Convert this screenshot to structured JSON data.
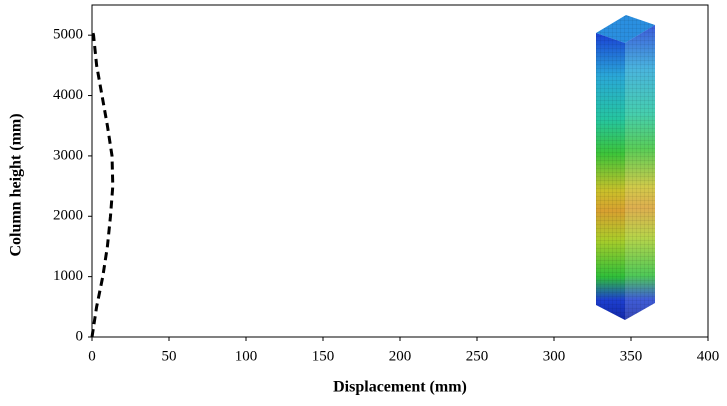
{
  "chart_data": {
    "type": "line",
    "x_label": "Displacement  (mm)",
    "y_label": "Column  height  (mm)",
    "x": [
      0,
      3,
      7,
      10,
      12,
      13.5,
      13,
      10,
      6.5,
      3,
      1,
      0
    ],
    "values": [
      0,
      500,
      1000,
      1500,
      2000,
      2500,
      3000,
      3500,
      4000,
      4500,
      5000,
      5100
    ],
    "color": "#000000",
    "dashed": true,
    "xlim": [
      0,
      400
    ],
    "xticks": [
      0,
      50,
      100,
      150,
      200,
      250,
      300,
      350,
      400
    ],
    "ylim": [
      0,
      5500
    ],
    "yticks": [
      0,
      1000,
      2000,
      3000,
      4000,
      5000
    ]
  }
}
